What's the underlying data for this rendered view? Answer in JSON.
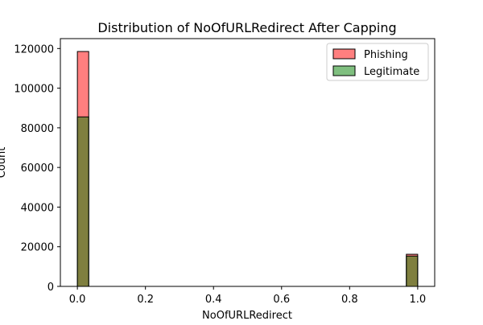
{
  "chart_data": {
    "type": "bar",
    "title": "Distribution of NoOfURLRedirect After Capping",
    "xlabel": "NoOfURLRedirect",
    "ylabel": "Count",
    "xlim": [
      -0.05,
      1.05
    ],
    "ylim": [
      0,
      125000
    ],
    "x_ticks": [
      0.0,
      0.2,
      0.4,
      0.6,
      0.8,
      1.0
    ],
    "x_tick_labels": [
      "0.0",
      "0.2",
      "0.4",
      "0.6",
      "0.8",
      "1.0"
    ],
    "y_ticks": [
      0,
      20000,
      40000,
      60000,
      80000,
      100000,
      120000
    ],
    "y_tick_labels": [
      "0",
      "20000",
      "40000",
      "60000",
      "80000",
      "100000",
      "120000"
    ],
    "bins": [
      [
        0.0,
        0.0333
      ],
      [
        0.9667,
        1.0
      ]
    ],
    "series": [
      {
        "name": "Phishing",
        "color": "#ff0000",
        "opacity": 0.5,
        "values": [
          118500,
          16200
        ]
      },
      {
        "name": "Legitimate",
        "color": "#008000",
        "opacity": 0.5,
        "values": [
          85500,
          15300
        ]
      }
    ],
    "legend": {
      "position": "top-right"
    },
    "grid": false
  }
}
